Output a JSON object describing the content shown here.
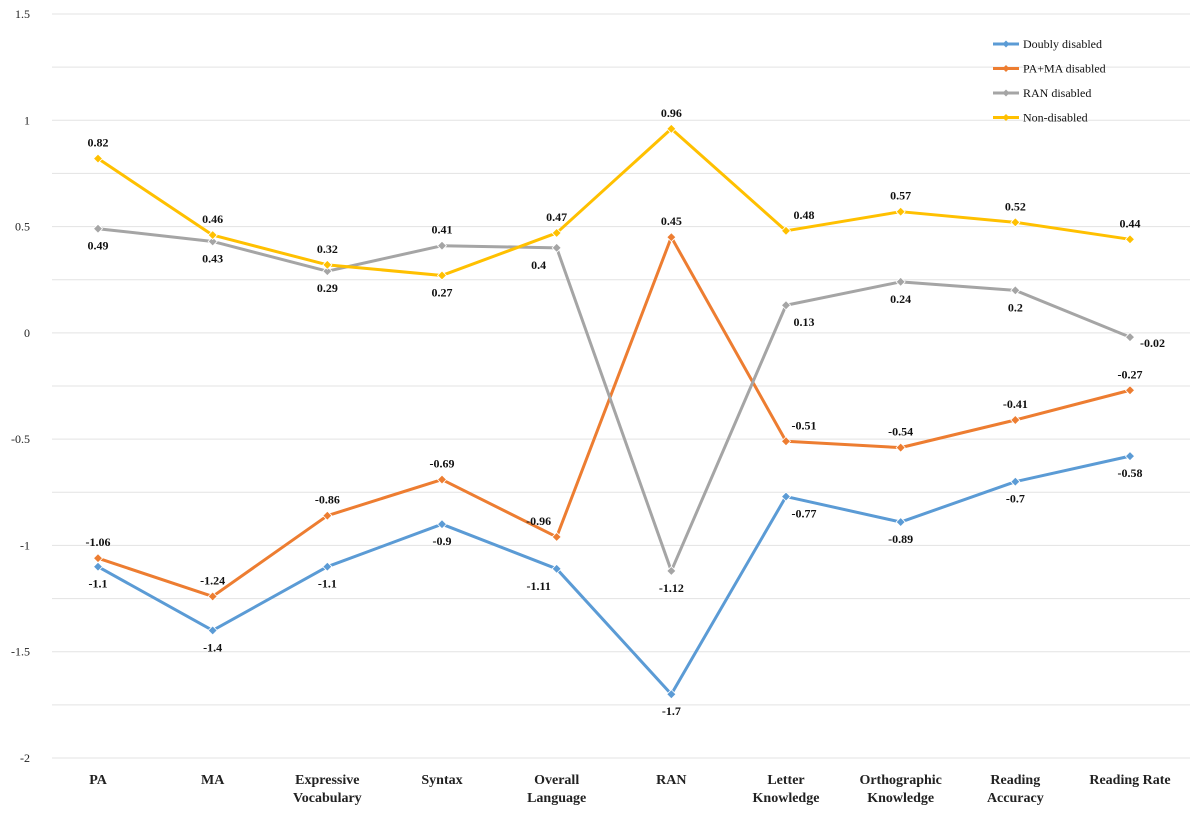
{
  "chart_data": {
    "type": "line",
    "title": "",
    "xlabel": "",
    "ylabel": "",
    "ylim": [
      -2,
      1.5
    ],
    "yticks": [
      1.5,
      1,
      0.5,
      0,
      -0.5,
      -1,
      -1.5,
      -2
    ],
    "grid": true,
    "legend_position": "top-right",
    "categories": [
      [
        "PA"
      ],
      [
        "MA"
      ],
      [
        "Expressive",
        "Vocabulary"
      ],
      [
        "Syntax"
      ],
      [
        "Overall",
        "Language"
      ],
      [
        "RAN"
      ],
      [
        "Letter",
        "Knowledge"
      ],
      [
        "Orthographic",
        "Knowledge"
      ],
      [
        "Reading",
        "Accuracy"
      ],
      [
        "Reading Rate"
      ]
    ],
    "series": [
      {
        "name": "Doubly disabled",
        "color": "#5b9bd5",
        "values": [
          -1.1,
          -1.4,
          -1.1,
          -0.9,
          -1.11,
          -1.7,
          -0.77,
          -0.89,
          -0.7,
          -0.58
        ],
        "labels": [
          "-1.1",
          "-1.4",
          "-1.1",
          "-0.9",
          "-1.11",
          "-1.7",
          "-0.77",
          "-0.89",
          "-0.7",
          "-0.58"
        ],
        "label_pos": [
          "below",
          "below",
          "below",
          "below",
          "below-left",
          "below",
          "below-right",
          "below",
          "below",
          "below"
        ]
      },
      {
        "name": "PA+MA disabled",
        "color": "#ed7d31",
        "values": [
          -1.06,
          -1.24,
          -0.86,
          -0.69,
          -0.96,
          0.45,
          -0.51,
          -0.54,
          -0.41,
          -0.27
        ],
        "labels": [
          "-1.06",
          "-1.24",
          "-0.86",
          "-0.69",
          "-0.96",
          "0.45",
          "-0.51",
          "-0.54",
          "-0.41",
          "-0.27"
        ],
        "label_pos": [
          "above",
          "above",
          "above",
          "above",
          "above-left",
          "above",
          "above-right",
          "above",
          "above",
          "above"
        ]
      },
      {
        "name": "RAN disabled",
        "color": "#a5a5a5",
        "values": [
          0.49,
          0.43,
          0.29,
          0.41,
          0.4,
          -1.12,
          0.13,
          0.24,
          0.2,
          -0.02
        ],
        "labels": [
          "0.49",
          "0.43",
          "0.29",
          "0.41",
          "0.4",
          "-1.12",
          "0.13",
          "0.24",
          "0.2",
          "-0.02"
        ],
        "label_pos": [
          "below",
          "below",
          "below",
          "above",
          "below-left",
          "below",
          "below-right",
          "below",
          "below",
          "right"
        ]
      },
      {
        "name": "Non-disabled",
        "color": "#ffc000",
        "values": [
          0.82,
          0.46,
          0.32,
          0.27,
          0.47,
          0.96,
          0.48,
          0.57,
          0.52,
          0.44
        ],
        "labels": [
          "0.82",
          "0.46",
          "0.32",
          "0.27",
          "0.47",
          "0.96",
          "0.48",
          "0.57",
          "0.52",
          "0.44"
        ],
        "label_pos": [
          "above",
          "above",
          "above",
          "below",
          "above",
          "above",
          "above-right",
          "above",
          "above",
          "above"
        ]
      }
    ]
  }
}
